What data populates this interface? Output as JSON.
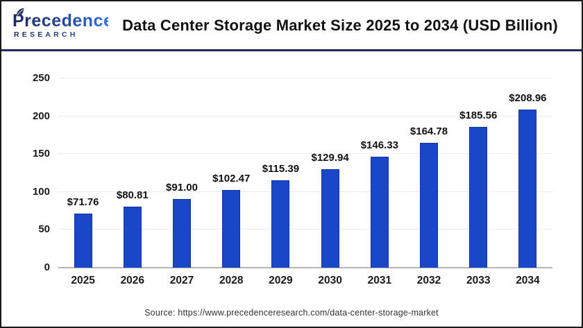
{
  "logo": {
    "line1": "Precedence",
    "line2": "RESEARCH"
  },
  "chart_data": {
    "type": "bar",
    "title": "Data Center Storage Market Size 2025 to 2034 (USD Billion)",
    "categories": [
      "2025",
      "2026",
      "2027",
      "2028",
      "2029",
      "2030",
      "2031",
      "2032",
      "2033",
      "2034"
    ],
    "values": [
      71.76,
      80.81,
      91.0,
      102.47,
      115.39,
      129.94,
      146.33,
      164.78,
      185.56,
      208.96
    ],
    "value_labels": [
      "$71.76",
      "$80.81",
      "$91.00",
      "$102.47",
      "$115.39",
      "$129.94",
      "$146.33",
      "$164.78",
      "$185.56",
      "$208.96"
    ],
    "yticks": [
      0,
      50,
      100,
      150,
      200,
      250
    ],
    "ylim": [
      0,
      250
    ],
    "xlabel": "",
    "ylabel": "",
    "grid": true,
    "legend": "none",
    "bar_color": "#1a47c8"
  },
  "source": "Source: https://www.precedenceresearch.com/data-center-storage-market"
}
